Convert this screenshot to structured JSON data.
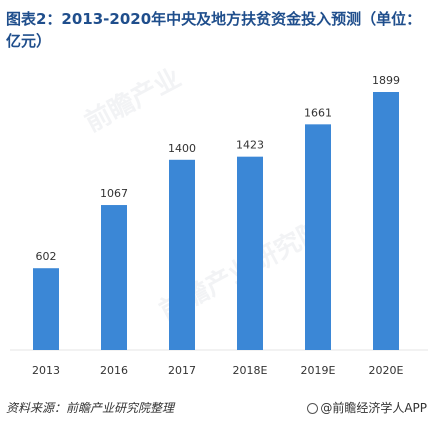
{
  "title": "图表2：2013-2020年中央及地方扶贫资金投入预测（单位：亿元）",
  "source": "资料来源：前瞻产业研究院整理",
  "brand": "@前瞻经济学人APP",
  "colors": {
    "bar": "#3b87d6",
    "title": "#1f4e8c"
  },
  "chart_data": {
    "type": "bar",
    "categories": [
      "2013",
      "2016",
      "2017",
      "2018E",
      "2019E",
      "2020E"
    ],
    "values": [
      602,
      1067,
      1400,
      1423,
      1661,
      1899
    ],
    "data_labels": [
      "602",
      "1067",
      "1400",
      "1423",
      "1661",
      "1899"
    ],
    "title": "图表2：2013-2020年中央及地方扶贫资金投入预测（单位：亿元）",
    "xlabel": "",
    "ylabel": "",
    "ylim": [
      0,
      1899
    ],
    "grid": false,
    "legend": "none"
  }
}
